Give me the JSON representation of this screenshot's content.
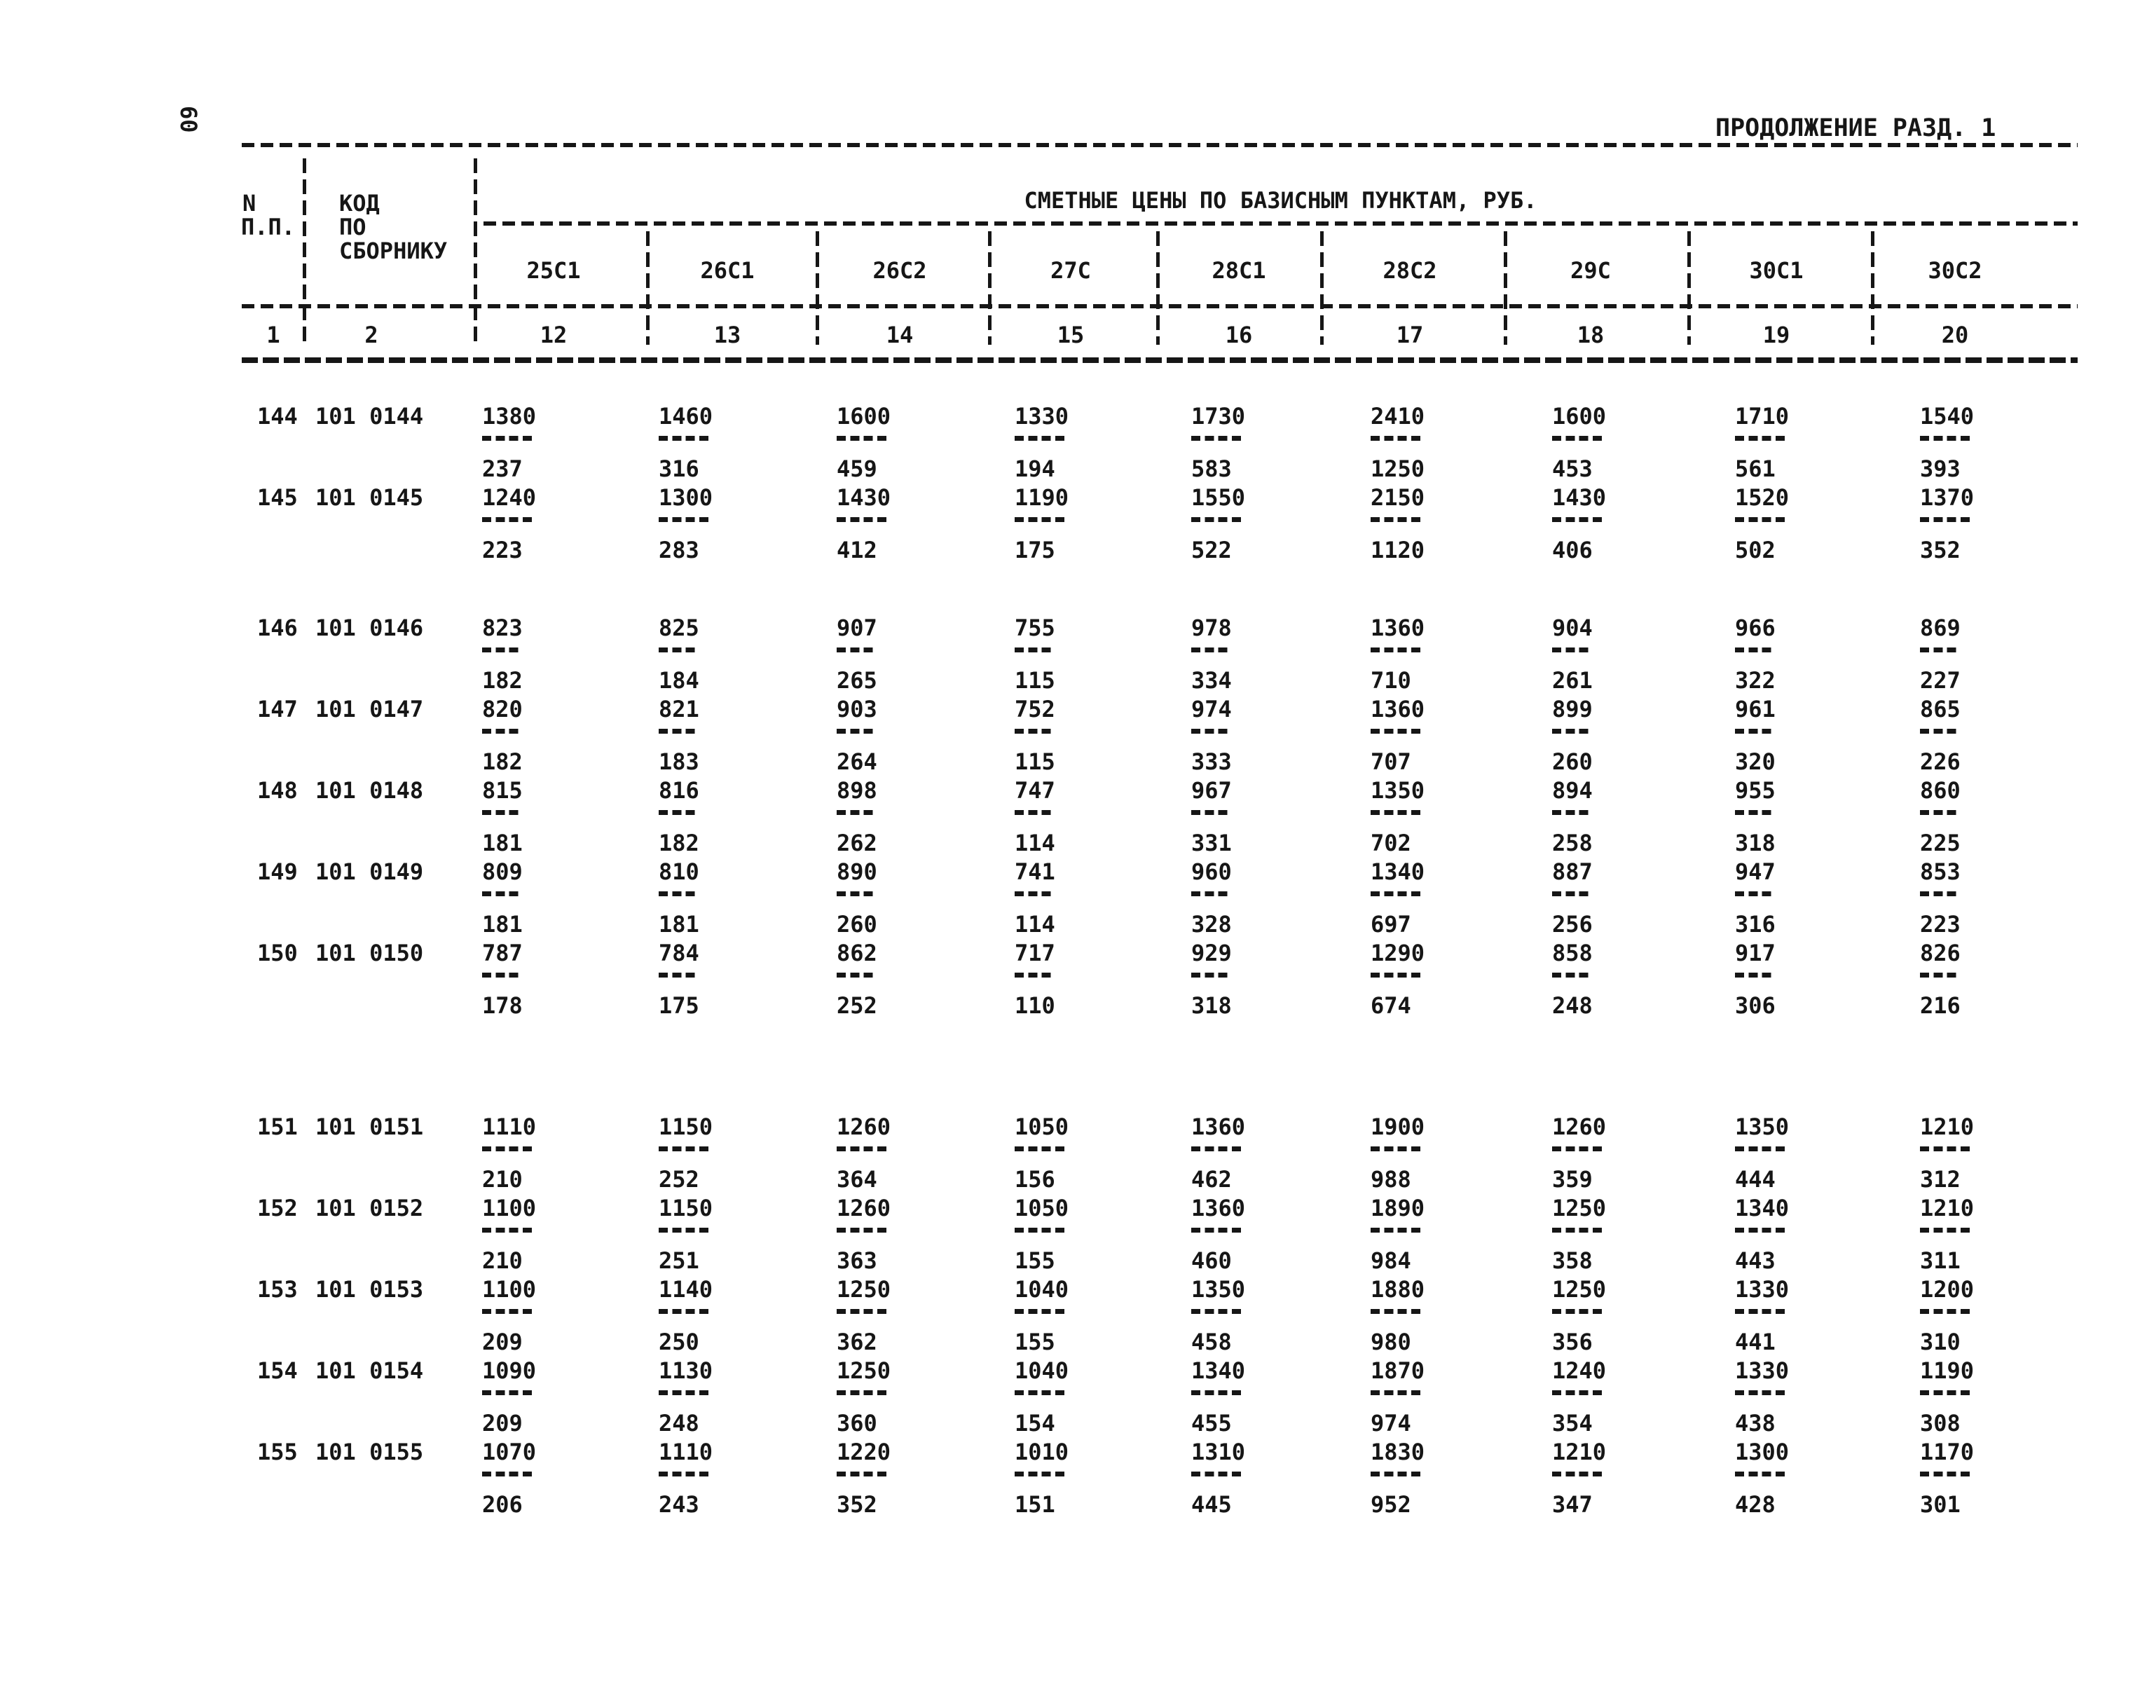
{
  "page": {
    "side_page_number": "60",
    "continuation_title": "ПРОДОЛЖЕНИЕ РАЗД. 1",
    "ink_color": "#161616",
    "paper_color": "#ffffff"
  },
  "table": {
    "col_np_header_line1": "N",
    "col_np_header_line2": "П.П.",
    "col_code_header_line1": "КОД",
    "col_code_header_line2": "ПО",
    "col_code_header_line3": "СБОРНИКУ",
    "prices_span_header": "СМЕТНЫЕ ЦЕНЫ ПО БАЗИСНЫМ ПУНКТАМ, РУБ.",
    "price_point_headers": [
      "25С1",
      "26С1",
      "26С2",
      "27С",
      "28С1",
      "28С2",
      "29С",
      "30С1",
      "30С2"
    ],
    "column_index_row": [
      "1",
      "2",
      "12",
      "13",
      "14",
      "15",
      "16",
      "17",
      "18",
      "19",
      "20"
    ],
    "rows": [
      {
        "np": "144",
        "code": "101 0144",
        "prices": [
          {
            "upper": "1380",
            "lower": "237"
          },
          {
            "upper": "1460",
            "lower": "316"
          },
          {
            "upper": "1600",
            "lower": "459"
          },
          {
            "upper": "1330",
            "lower": "194"
          },
          {
            "upper": "1730",
            "lower": "583"
          },
          {
            "upper": "2410",
            "lower": "1250"
          },
          {
            "upper": "1600",
            "lower": "453"
          },
          {
            "upper": "1710",
            "lower": "561"
          },
          {
            "upper": "1540",
            "lower": "393"
          }
        ]
      },
      {
        "np": "145",
        "code": "101 0145",
        "prices": [
          {
            "upper": "1240",
            "lower": "223"
          },
          {
            "upper": "1300",
            "lower": "283"
          },
          {
            "upper": "1430",
            "lower": "412"
          },
          {
            "upper": "1190",
            "lower": "175"
          },
          {
            "upper": "1550",
            "lower": "522"
          },
          {
            "upper": "2150",
            "lower": "1120"
          },
          {
            "upper": "1430",
            "lower": "406"
          },
          {
            "upper": "1520",
            "lower": "502"
          },
          {
            "upper": "1370",
            "lower": "352"
          }
        ]
      },
      {
        "np": "146",
        "code": "101 0146",
        "prices": [
          {
            "upper": "823",
            "lower": "182"
          },
          {
            "upper": "825",
            "lower": "184"
          },
          {
            "upper": "907",
            "lower": "265"
          },
          {
            "upper": "755",
            "lower": "115"
          },
          {
            "upper": "978",
            "lower": "334"
          },
          {
            "upper": "1360",
            "lower": "710"
          },
          {
            "upper": "904",
            "lower": "261"
          },
          {
            "upper": "966",
            "lower": "322"
          },
          {
            "upper": "869",
            "lower": "227"
          }
        ]
      },
      {
        "np": "147",
        "code": "101 0147",
        "prices": [
          {
            "upper": "820",
            "lower": "182"
          },
          {
            "upper": "821",
            "lower": "183"
          },
          {
            "upper": "903",
            "lower": "264"
          },
          {
            "upper": "752",
            "lower": "115"
          },
          {
            "upper": "974",
            "lower": "333"
          },
          {
            "upper": "1360",
            "lower": "707"
          },
          {
            "upper": "899",
            "lower": "260"
          },
          {
            "upper": "961",
            "lower": "320"
          },
          {
            "upper": "865",
            "lower": "226"
          }
        ]
      },
      {
        "np": "148",
        "code": "101 0148",
        "prices": [
          {
            "upper": "815",
            "lower": "181"
          },
          {
            "upper": "816",
            "lower": "182"
          },
          {
            "upper": "898",
            "lower": "262"
          },
          {
            "upper": "747",
            "lower": "114"
          },
          {
            "upper": "967",
            "lower": "331"
          },
          {
            "upper": "1350",
            "lower": "702"
          },
          {
            "upper": "894",
            "lower": "258"
          },
          {
            "upper": "955",
            "lower": "318"
          },
          {
            "upper": "860",
            "lower": "225"
          }
        ]
      },
      {
        "np": "149",
        "code": "101 0149",
        "prices": [
          {
            "upper": "809",
            "lower": "181"
          },
          {
            "upper": "810",
            "lower": "181"
          },
          {
            "upper": "890",
            "lower": "260"
          },
          {
            "upper": "741",
            "lower": "114"
          },
          {
            "upper": "960",
            "lower": "328"
          },
          {
            "upper": "1340",
            "lower": "697"
          },
          {
            "upper": "887",
            "lower": "256"
          },
          {
            "upper": "947",
            "lower": "316"
          },
          {
            "upper": "853",
            "lower": "223"
          }
        ]
      },
      {
        "np": "150",
        "code": "101 0150",
        "prices": [
          {
            "upper": "787",
            "lower": "178"
          },
          {
            "upper": "784",
            "lower": "175"
          },
          {
            "upper": "862",
            "lower": "252"
          },
          {
            "upper": "717",
            "lower": "110"
          },
          {
            "upper": "929",
            "lower": "318"
          },
          {
            "upper": "1290",
            "lower": "674"
          },
          {
            "upper": "858",
            "lower": "248"
          },
          {
            "upper": "917",
            "lower": "306"
          },
          {
            "upper": "826",
            "lower": "216"
          }
        ]
      },
      {
        "np": "151",
        "code": "101 0151",
        "prices": [
          {
            "upper": "1110",
            "lower": "210"
          },
          {
            "upper": "1150",
            "lower": "252"
          },
          {
            "upper": "1260",
            "lower": "364"
          },
          {
            "upper": "1050",
            "lower": "156"
          },
          {
            "upper": "1360",
            "lower": "462"
          },
          {
            "upper": "1900",
            "lower": "988"
          },
          {
            "upper": "1260",
            "lower": "359"
          },
          {
            "upper": "1350",
            "lower": "444"
          },
          {
            "upper": "1210",
            "lower": "312"
          }
        ]
      },
      {
        "np": "152",
        "code": "101 0152",
        "prices": [
          {
            "upper": "1100",
            "lower": "210"
          },
          {
            "upper": "1150",
            "lower": "251"
          },
          {
            "upper": "1260",
            "lower": "363"
          },
          {
            "upper": "1050",
            "lower": "155"
          },
          {
            "upper": "1360",
            "lower": "460"
          },
          {
            "upper": "1890",
            "lower": "984"
          },
          {
            "upper": "1250",
            "lower": "358"
          },
          {
            "upper": "1340",
            "lower": "443"
          },
          {
            "upper": "1210",
            "lower": "311"
          }
        ]
      },
      {
        "np": "153",
        "code": "101 0153",
        "prices": [
          {
            "upper": "1100",
            "lower": "209"
          },
          {
            "upper": "1140",
            "lower": "250"
          },
          {
            "upper": "1250",
            "lower": "362"
          },
          {
            "upper": "1040",
            "lower": "155"
          },
          {
            "upper": "1350",
            "lower": "458"
          },
          {
            "upper": "1880",
            "lower": "980"
          },
          {
            "upper": "1250",
            "lower": "356"
          },
          {
            "upper": "1330",
            "lower": "441"
          },
          {
            "upper": "1200",
            "lower": "310"
          }
        ]
      },
      {
        "np": "154",
        "code": "101 0154",
        "prices": [
          {
            "upper": "1090",
            "lower": "209"
          },
          {
            "upper": "1130",
            "lower": "248"
          },
          {
            "upper": "1250",
            "lower": "360"
          },
          {
            "upper": "1040",
            "lower": "154"
          },
          {
            "upper": "1340",
            "lower": "455"
          },
          {
            "upper": "1870",
            "lower": "974"
          },
          {
            "upper": "1240",
            "lower": "354"
          },
          {
            "upper": "1330",
            "lower": "438"
          },
          {
            "upper": "1190",
            "lower": "308"
          }
        ]
      },
      {
        "np": "155",
        "code": "101 0155",
        "prices": [
          {
            "upper": "1070",
            "lower": "206"
          },
          {
            "upper": "1110",
            "lower": "243"
          },
          {
            "upper": "1220",
            "lower": "352"
          },
          {
            "upper": "1010",
            "lower": "151"
          },
          {
            "upper": "1310",
            "lower": "445"
          },
          {
            "upper": "1830",
            "lower": "952"
          },
          {
            "upper": "1210",
            "lower": "347"
          },
          {
            "upper": "1300",
            "lower": "428"
          },
          {
            "upper": "1170",
            "lower": "301"
          }
        ]
      }
    ]
  }
}
